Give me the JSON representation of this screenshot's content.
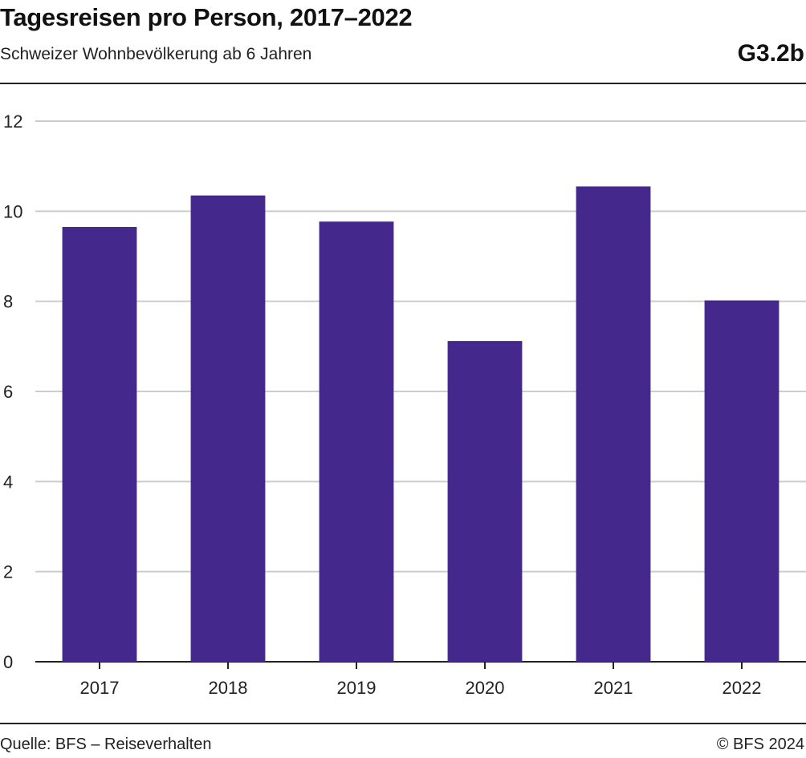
{
  "header": {
    "title": "Tagesreisen pro Person, 2017–2022",
    "subtitle": "Schweizer Wohnbevölkerung ab 6 Jahren",
    "figure_id": "G3.2b"
  },
  "footer": {
    "source": "Quelle: BFS – Reiseverhalten",
    "copyright": "© BFS 2024"
  },
  "colors": {
    "bar": "#44288C",
    "grid": "#cccccc",
    "axis": "#222222"
  },
  "chart_data": {
    "type": "bar",
    "categories": [
      "2017",
      "2018",
      "2019",
      "2020",
      "2021",
      "2022"
    ],
    "values": [
      9.65,
      10.35,
      9.77,
      7.12,
      10.55,
      8.02
    ],
    "ylim": [
      0,
      12
    ],
    "yticks": [
      0,
      2,
      4,
      6,
      8,
      10,
      12
    ],
    "grid": true
  }
}
